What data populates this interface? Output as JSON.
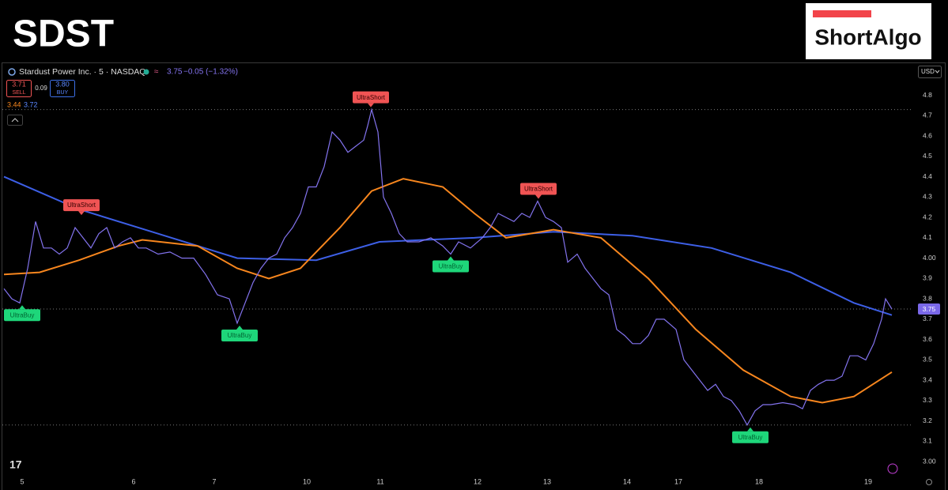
{
  "header": {
    "ticker": "SDST",
    "brand": "ShortAlgo"
  },
  "chart_data": {
    "type": "line",
    "symbol_line": "Stardust Power Inc. · 5 · NASDAQ",
    "change": "−0.05 (−1.32%)",
    "sell": {
      "value": 3.71,
      "label": "3.71"
    },
    "sell_text": "SELL",
    "spread": 0.09,
    "buy": {
      "value": 3.8,
      "label": "3.80"
    },
    "buy_text": "BUY",
    "currency": "USD",
    "xlim": [
      0,
      114.5
    ],
    "ylim": [
      2.95,
      4.95
    ],
    "xticks": [
      {
        "value": 2.3,
        "label": "5"
      },
      {
        "value": 16.4,
        "label": "6"
      },
      {
        "value": 26.6,
        "label": "7"
      },
      {
        "value": 38.3,
        "label": "10"
      },
      {
        "value": 47.6,
        "label": "11"
      },
      {
        "value": 59.9,
        "label": "12"
      },
      {
        "value": 68.7,
        "label": "13"
      },
      {
        "value": 78.8,
        "label": "14"
      },
      {
        "value": 85.3,
        "label": "17"
      },
      {
        "value": 95.5,
        "label": "18"
      },
      {
        "value": 109.3,
        "label": "19"
      }
    ],
    "yticks": [
      {
        "value": 3,
        "label": "3.00"
      },
      3.1,
      3.2,
      3.3,
      3.4,
      3.5,
      3.6,
      3.7,
      3.8,
      3.9,
      {
        "value": 4,
        "label": "4.00"
      },
      4.1,
      4.2,
      4.3,
      4.4,
      4.5,
      4.6,
      4.7,
      4.8
    ],
    "grid": false,
    "series": [
      {
        "color": "#8373ee",
        "x": [
          0,
          1,
          2,
          3,
          4,
          5,
          6,
          7,
          8,
          9,
          10,
          11,
          12,
          13,
          14,
          15,
          16,
          17,
          18,
          19.5,
          21,
          22.5,
          24,
          25.5,
          27,
          28.5,
          29.5,
          30.5,
          31.5,
          32.5,
          33.5,
          34.5,
          35.5,
          36.5,
          37.5,
          38.5,
          39.5,
          40.5,
          41.5,
          42.5,
          43.5,
          44.5,
          45.5,
          46,
          46.5,
          47.3,
          48,
          49,
          50,
          51,
          52.5,
          54,
          55.5,
          56.5,
          57.5,
          59,
          60.5,
          61.5,
          62.5,
          63.5,
          64.5,
          65.5,
          66.5,
          67.5,
          68.5,
          69.5,
          70.5,
          71.3,
          72.5,
          73.5,
          74.5,
          75.5,
          76.5,
          77.5,
          78.5,
          79.5,
          80.5,
          81.5,
          82.5,
          83.5,
          85,
          86,
          87,
          88,
          89,
          90,
          91,
          92,
          93,
          94,
          95,
          96,
          97,
          98.5,
          100,
          101,
          102,
          103,
          104,
          105,
          106,
          107,
          108,
          109,
          110,
          111,
          111.5,
          112.3
        ],
        "values": [
          3.85,
          3.8,
          3.78,
          3.95,
          4.18,
          4.05,
          4.05,
          4.02,
          4.05,
          4.15,
          4.1,
          4.05,
          4.12,
          4.15,
          4.05,
          4.08,
          4.1,
          4.05,
          4.05,
          4.02,
          4.03,
          4,
          4,
          3.92,
          3.82,
          3.8,
          3.68,
          3.78,
          3.88,
          3.95,
          4,
          4.02,
          4.1,
          4.15,
          4.22,
          4.35,
          4.35,
          4.45,
          4.62,
          4.58,
          4.52,
          4.55,
          4.58,
          4.65,
          4.73,
          4.62,
          4.3,
          4.22,
          4.12,
          4.08,
          4.08,
          4.1,
          4.06,
          4.02,
          4.08,
          4.05,
          4.1,
          4.15,
          4.22,
          4.2,
          4.18,
          4.22,
          4.2,
          4.28,
          4.2,
          4.18,
          4.15,
          3.98,
          4.02,
          3.95,
          3.9,
          3.85,
          3.82,
          3.65,
          3.62,
          3.58,
          3.58,
          3.62,
          3.7,
          3.7,
          3.65,
          3.5,
          3.45,
          3.4,
          3.35,
          3.38,
          3.32,
          3.3,
          3.25,
          3.18,
          3.25,
          3.28,
          3.28,
          3.29,
          3.28,
          3.26,
          3.35,
          3.38,
          3.4,
          3.4,
          3.42,
          3.52,
          3.52,
          3.5,
          3.58,
          3.7,
          3.8,
          3.75
        ]
      },
      {
        "color": "#3d5fe6",
        "x": [
          0,
          9.5,
          19.5,
          29.5,
          39.5,
          47.5,
          59.5,
          69.5,
          79.5,
          89.5,
          99.5,
          107.5,
          112.3
        ],
        "values": [
          4.4,
          4.24,
          4.12,
          4,
          3.99,
          4.08,
          4.1,
          4.13,
          4.11,
          4.05,
          3.93,
          3.78,
          3.72
        ]
      },
      {
        "color": "#f7861e",
        "x": [
          0,
          4.5,
          9.5,
          14.5,
          17.5,
          24.5,
          29.5,
          33.5,
          37.5,
          42.5,
          46.5,
          50.5,
          55.5,
          59.5,
          63.5,
          69.5,
          75.5,
          81.5,
          87.5,
          93.5,
          99.5,
          103.5,
          107.5,
          112.3
        ],
        "values": [
          3.92,
          3.93,
          3.99,
          4.06,
          4.09,
          4.06,
          3.95,
          3.9,
          3.95,
          4.15,
          4.33,
          4.39,
          4.35,
          4.22,
          4.1,
          4.14,
          4.1,
          3.9,
          3.65,
          3.45,
          3.32,
          3.29,
          3.32,
          3.44
        ]
      }
    ],
    "hlines": [
      4.73,
      3.75,
      3.18
    ],
    "buy_signals": [
      {
        "label": "UltraBuy",
        "x": 2.3,
        "y": 3.78
      },
      {
        "label": "UltraBuy",
        "x": 29.8,
        "y": 3.68
      },
      {
        "label": "UltraBuy",
        "x": 56.5,
        "y": 4.02
      },
      {
        "label": "UltraBuy",
        "x": 94.4,
        "y": 3.18
      }
    ],
    "short_signals": [
      {
        "label": "UltraShort",
        "x": 9.8,
        "y": 4.2
      },
      {
        "label": "UltraShort",
        "x": 46.4,
        "y": 4.73
      },
      {
        "label": "UltraShort",
        "x": 67.6,
        "y": 4.28
      }
    ]
  }
}
